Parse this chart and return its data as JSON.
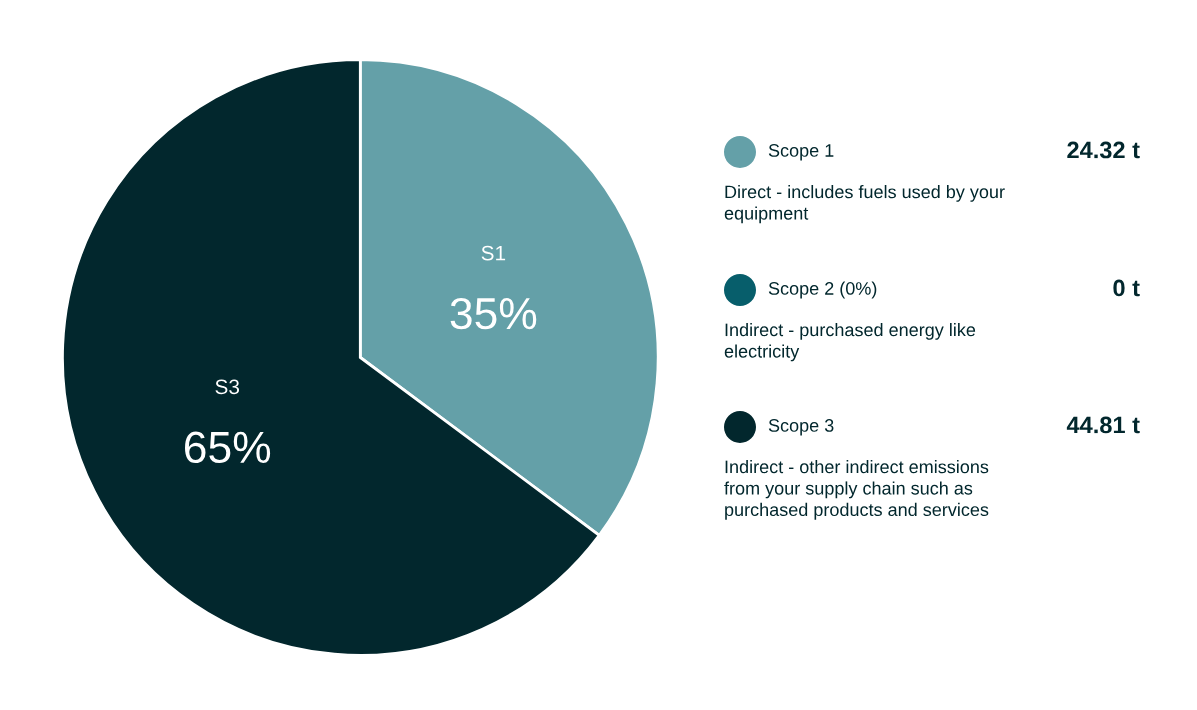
{
  "chart_data": {
    "type": "pie",
    "categories": [
      "Scope 1",
      "Scope 2 (0%)",
      "Scope 3"
    ],
    "values": [
      24.32,
      0,
      44.81
    ],
    "colors": [
      "#64a0a8",
      "#075e6b",
      "#02272d"
    ],
    "value_labels": [
      "24.32 t",
      "0 t",
      "44.81 t"
    ],
    "legend": "right",
    "annotations": [
      {
        "text": "S1",
        "x": "Scope 1"
      },
      {
        "text": "35%",
        "x": "Scope 1"
      },
      {
        "text": "S3",
        "x": "Scope 3"
      },
      {
        "text": "65%",
        "x": "Scope 3"
      },
      "Direct - includes fuels used by your\nequipment",
      "Indirect - purchased energy like\nelectricity",
      "Indirect - other indirect emissions\nfrom your supply chain such as\npurchased products and services"
    ]
  }
}
